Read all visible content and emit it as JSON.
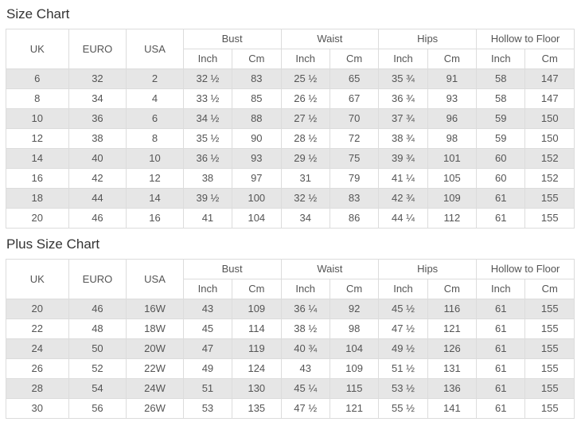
{
  "colors": {
    "row_alternate": "#e6e6e6",
    "row_plain": "#ffffff",
    "border": "#dcdcdc",
    "cell_text": "#555555",
    "title_text": "#333333"
  },
  "charts": [
    {
      "title": "Size Chart",
      "column_groups": [
        {
          "label": "UK",
          "cols": 1
        },
        {
          "label": "EURO",
          "cols": 1
        },
        {
          "label": "USA",
          "cols": 1
        },
        {
          "label": "Bust",
          "cols": 2
        },
        {
          "label": "Waist",
          "cols": 2
        },
        {
          "label": "Hips",
          "cols": 2
        },
        {
          "label": "Hollow to Floor",
          "cols": 2
        }
      ],
      "sub_headers": [
        "Inch",
        "Cm",
        "Inch",
        "Cm",
        "Inch",
        "Cm",
        "Inch",
        "Cm"
      ],
      "rows": [
        [
          "6",
          "32",
          "2",
          "32 ½",
          "83",
          "25 ½",
          "65",
          "35 ¾",
          "91",
          "58",
          "147"
        ],
        [
          "8",
          "34",
          "4",
          "33 ½",
          "85",
          "26 ½",
          "67",
          "36 ¾",
          "93",
          "58",
          "147"
        ],
        [
          "10",
          "36",
          "6",
          "34 ½",
          "88",
          "27 ½",
          "70",
          "37 ¾",
          "96",
          "59",
          "150"
        ],
        [
          "12",
          "38",
          "8",
          "35 ½",
          "90",
          "28 ½",
          "72",
          "38 ¾",
          "98",
          "59",
          "150"
        ],
        [
          "14",
          "40",
          "10",
          "36 ½",
          "93",
          "29 ½",
          "75",
          "39 ¾",
          "101",
          "60",
          "152"
        ],
        [
          "16",
          "42",
          "12",
          "38",
          "97",
          "31",
          "79",
          "41 ¼",
          "105",
          "60",
          "152"
        ],
        [
          "18",
          "44",
          "14",
          "39 ½",
          "100",
          "32 ½",
          "83",
          "42 ¾",
          "109",
          "61",
          "155"
        ],
        [
          "20",
          "46",
          "16",
          "41",
          "104",
          "34",
          "86",
          "44 ¼",
          "112",
          "61",
          "155"
        ]
      ]
    },
    {
      "title": "Plus Size Chart",
      "column_groups": [
        {
          "label": "UK",
          "cols": 1
        },
        {
          "label": "EURO",
          "cols": 1
        },
        {
          "label": "USA",
          "cols": 1
        },
        {
          "label": "Bust",
          "cols": 2
        },
        {
          "label": "Waist",
          "cols": 2
        },
        {
          "label": "Hips",
          "cols": 2
        },
        {
          "label": "Hollow to Floor",
          "cols": 2
        }
      ],
      "sub_headers": [
        "Inch",
        "Cm",
        "Inch",
        "Cm",
        "Inch",
        "Cm",
        "Inch",
        "Cm"
      ],
      "rows": [
        [
          "20",
          "46",
          "16W",
          "43",
          "109",
          "36 ¼",
          "92",
          "45 ½",
          "116",
          "61",
          "155"
        ],
        [
          "22",
          "48",
          "18W",
          "45",
          "114",
          "38 ½",
          "98",
          "47 ½",
          "121",
          "61",
          "155"
        ],
        [
          "24",
          "50",
          "20W",
          "47",
          "119",
          "40 ¾",
          "104",
          "49 ½",
          "126",
          "61",
          "155"
        ],
        [
          "26",
          "52",
          "22W",
          "49",
          "124",
          "43",
          "109",
          "51 ½",
          "131",
          "61",
          "155"
        ],
        [
          "28",
          "54",
          "24W",
          "51",
          "130",
          "45 ¼",
          "115",
          "53 ½",
          "136",
          "61",
          "155"
        ],
        [
          "30",
          "56",
          "26W",
          "53",
          "135",
          "47 ½",
          "121",
          "55 ½",
          "141",
          "61",
          "155"
        ]
      ]
    }
  ]
}
